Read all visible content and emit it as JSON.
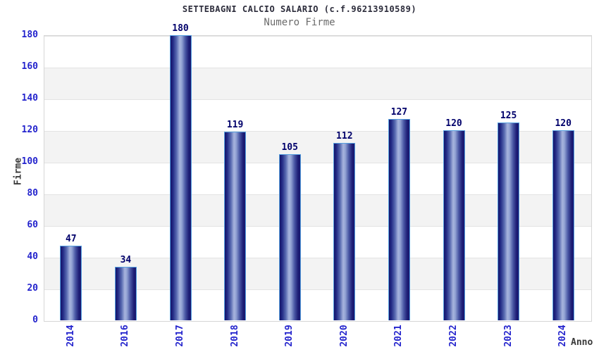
{
  "chart_data": {
    "type": "bar",
    "title": "SETTEBAGNI CALCIO SALARIO (c.f.96213910589)",
    "subtitle": "Numero Firme",
    "xlabel": "Anno",
    "ylabel": "Firme",
    "categories": [
      "2014",
      "2016",
      "2017",
      "2018",
      "2019",
      "2020",
      "2021",
      "2022",
      "2023",
      "2024"
    ],
    "values": [
      47,
      34,
      180,
      119,
      105,
      112,
      127,
      120,
      125,
      120
    ],
    "yticks": [
      0,
      20,
      40,
      60,
      80,
      100,
      120,
      140,
      160,
      180
    ],
    "ylim": [
      0,
      180
    ],
    "grid": "horizontal",
    "legend": "none",
    "band_style": "alternating horizontal white/gray stripes every 20 units",
    "colors": {
      "title": "#2b2b3a",
      "subtitle": "#6b6b6b",
      "tick_label": "#2424cd",
      "value_label": "#00006b",
      "axis_label": "#3a3a3a",
      "bar_dark": "#191970",
      "bar_light": "#a7b4dd",
      "bar_border": "#56a0e0",
      "band_gray": "#f3f3f3",
      "grid": "#e3e3e3"
    }
  }
}
